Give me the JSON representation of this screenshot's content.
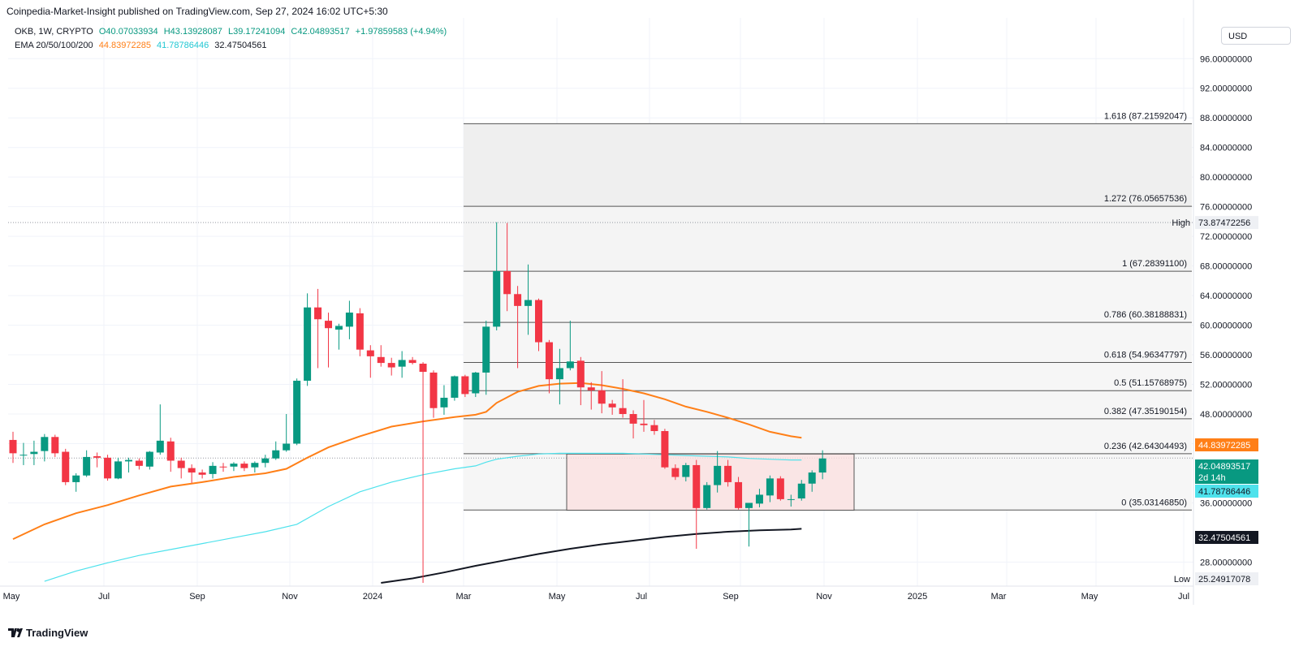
{
  "header": {
    "publisher": "Coinpedia-Market-Insight published on TradingView.com, Sep 27, 2024 16:02 UTC+5:30"
  },
  "legend": {
    "symbol": "OKB, 1W, CRYPTO",
    "open": "O40.07033934",
    "high": "H43.13928087",
    "low": "L39.17241094",
    "close": "C42.04893517",
    "change": "+1.97859583 (+4.94%)",
    "ema_label": "EMA 20/50/100/200",
    "ema20": "44.83972285",
    "ema50": "41.78786446",
    "ema100": "32.47504561"
  },
  "currency_button": "USD",
  "brand": "TradingView",
  "colors": {
    "up": "#089981",
    "down": "#f23645",
    "ema20": "#ff7f17",
    "ema50": "#4ee2ec",
    "ema100": "#131722",
    "box_fill": "#fbe1e1",
    "box_stroke": "#555555"
  },
  "chart_data": {
    "type": "candlestick",
    "price_axis": {
      "ylim": [
        25,
        99
      ],
      "ticks": [
        "96.00000000",
        "92.00000000",
        "88.00000000",
        "84.00000000",
        "80.00000000",
        "76.00000000",
        "72.00000000",
        "68.00000000",
        "64.00000000",
        "60.00000000",
        "56.00000000",
        "52.00000000",
        "48.00000000",
        "44.00000000",
        "36.00000000",
        "28.00000000"
      ]
    },
    "time_axis": {
      "labels": [
        "May",
        "Jul",
        "Sep",
        "Nov",
        "2024",
        "Mar",
        "May",
        "Jul",
        "Sep",
        "Nov",
        "2025",
        "Mar",
        "May",
        "Jul"
      ]
    },
    "price_tags": {
      "high_label": "High",
      "high_value": "73.87472256",
      "low_label": "Low",
      "low_value": "25.24917078",
      "close_value": "42.04893517",
      "countdown": "2d 14h",
      "ema20_value": "44.83972285",
      "ema50_value": "41.78786446",
      "ema100_value": "32.47504561"
    },
    "fib_levels": [
      {
        "level": "1.618",
        "price": 87.21592047,
        "label": "1.618 (87.21592047)"
      },
      {
        "level": "1.272",
        "price": 76.05657536,
        "label": "1.272 (76.05657536)"
      },
      {
        "level": "1",
        "price": 67.283911,
        "label": "1 (67.28391100)"
      },
      {
        "level": "0.786",
        "price": 60.38188831,
        "label": "0.786 (60.38188831)"
      },
      {
        "level": "0.618",
        "price": 54.96347797,
        "label": "0.618 (54.96347797)"
      },
      {
        "level": "0.5",
        "price": 51.15768975,
        "label": "0.5 (51.15768975)"
      },
      {
        "level": "0.382",
        "price": 47.35190154,
        "label": "0.382 (47.35190154)"
      },
      {
        "level": "0.236",
        "price": 42.64304493,
        "label": "0.236 (42.64304493)"
      },
      {
        "level": "0",
        "price": 35.0314685,
        "label": "0 (35.03146850)"
      }
    ],
    "consolidation_box": {
      "top": 42.6,
      "bottom": 35.0
    },
    "candles": [
      {
        "o": 44.5,
        "h": 45.6,
        "l": 41.4,
        "c": 42.7
      },
      {
        "o": 42.4,
        "h": 44.1,
        "l": 41.1,
        "c": 42.5
      },
      {
        "o": 42.6,
        "h": 44.4,
        "l": 41.1,
        "c": 42.9
      },
      {
        "o": 43.0,
        "h": 45.3,
        "l": 41.6,
        "c": 44.9
      },
      {
        "o": 44.9,
        "h": 45.2,
        "l": 42.2,
        "c": 42.7
      },
      {
        "o": 42.9,
        "h": 43.3,
        "l": 38.4,
        "c": 38.8
      },
      {
        "o": 38.8,
        "h": 40.0,
        "l": 37.5,
        "c": 39.7
      },
      {
        "o": 39.7,
        "h": 43.1,
        "l": 39.5,
        "c": 42.2
      },
      {
        "o": 42.3,
        "h": 42.8,
        "l": 40.8,
        "c": 42.1
      },
      {
        "o": 42.1,
        "h": 42.5,
        "l": 39.0,
        "c": 39.3
      },
      {
        "o": 39.3,
        "h": 42.1,
        "l": 39.2,
        "c": 41.6
      },
      {
        "o": 41.6,
        "h": 42.1,
        "l": 40.1,
        "c": 41.8
      },
      {
        "o": 41.7,
        "h": 42.0,
        "l": 40.5,
        "c": 41.0
      },
      {
        "o": 40.9,
        "h": 43.0,
        "l": 40.5,
        "c": 42.9
      },
      {
        "o": 42.8,
        "h": 49.3,
        "l": 42.5,
        "c": 44.4
      },
      {
        "o": 44.3,
        "h": 44.8,
        "l": 40.2,
        "c": 41.7
      },
      {
        "o": 41.7,
        "h": 42.1,
        "l": 39.3,
        "c": 40.7
      },
      {
        "o": 40.7,
        "h": 41.2,
        "l": 38.7,
        "c": 40.1
      },
      {
        "o": 40.1,
        "h": 40.5,
        "l": 39.3,
        "c": 39.8
      },
      {
        "o": 39.9,
        "h": 41.5,
        "l": 39.3,
        "c": 41.0
      },
      {
        "o": 40.9,
        "h": 41.4,
        "l": 40.2,
        "c": 40.8
      },
      {
        "o": 40.9,
        "h": 41.5,
        "l": 40.3,
        "c": 41.3
      },
      {
        "o": 41.3,
        "h": 41.6,
        "l": 40.3,
        "c": 40.7
      },
      {
        "o": 40.8,
        "h": 41.6,
        "l": 40.1,
        "c": 41.4
      },
      {
        "o": 41.4,
        "h": 42.5,
        "l": 40.8,
        "c": 42.0
      },
      {
        "o": 42.0,
        "h": 44.3,
        "l": 41.8,
        "c": 43.1
      },
      {
        "o": 43.1,
        "h": 48.0,
        "l": 42.9,
        "c": 44.0
      },
      {
        "o": 44.0,
        "h": 52.8,
        "l": 43.8,
        "c": 52.5
      },
      {
        "o": 52.5,
        "h": 64.3,
        "l": 51.8,
        "c": 62.4
      },
      {
        "o": 62.4,
        "h": 64.9,
        "l": 54.2,
        "c": 60.8
      },
      {
        "o": 60.6,
        "h": 61.7,
        "l": 54.3,
        "c": 59.6
      },
      {
        "o": 59.4,
        "h": 60.2,
        "l": 56.7,
        "c": 59.9
      },
      {
        "o": 59.8,
        "h": 63.3,
        "l": 58.1,
        "c": 61.7
      },
      {
        "o": 61.6,
        "h": 62.3,
        "l": 55.8,
        "c": 56.7
      },
      {
        "o": 56.6,
        "h": 57.3,
        "l": 52.9,
        "c": 55.8
      },
      {
        "o": 55.7,
        "h": 57.3,
        "l": 54.4,
        "c": 54.9
      },
      {
        "o": 54.9,
        "h": 55.6,
        "l": 53.2,
        "c": 54.3
      },
      {
        "o": 54.4,
        "h": 56.5,
        "l": 52.9,
        "c": 55.3
      },
      {
        "o": 55.3,
        "h": 55.7,
        "l": 54.7,
        "c": 54.9
      },
      {
        "o": 54.8,
        "h": 55.0,
        "l": 25.2,
        "c": 53.7
      },
      {
        "o": 53.6,
        "h": 53.9,
        "l": 47.5,
        "c": 48.8
      },
      {
        "o": 48.9,
        "h": 51.9,
        "l": 47.9,
        "c": 50.2
      },
      {
        "o": 50.2,
        "h": 53.2,
        "l": 49.8,
        "c": 53.1
      },
      {
        "o": 53.1,
        "h": 53.3,
        "l": 50.3,
        "c": 50.7
      },
      {
        "o": 50.8,
        "h": 53.7,
        "l": 50.3,
        "c": 53.6
      },
      {
        "o": 53.6,
        "h": 60.6,
        "l": 50.6,
        "c": 59.8
      },
      {
        "o": 59.8,
        "h": 73.9,
        "l": 59.3,
        "c": 67.3
      },
      {
        "o": 67.3,
        "h": 73.8,
        "l": 61.9,
        "c": 64.2
      },
      {
        "o": 64.2,
        "h": 65.3,
        "l": 54.2,
        "c": 62.6
      },
      {
        "o": 62.6,
        "h": 68.2,
        "l": 58.7,
        "c": 63.4
      },
      {
        "o": 63.4,
        "h": 63.6,
        "l": 56.5,
        "c": 57.7
      },
      {
        "o": 57.7,
        "h": 58.0,
        "l": 50.8,
        "c": 52.7
      },
      {
        "o": 52.7,
        "h": 56.8,
        "l": 49.3,
        "c": 54.2
      },
      {
        "o": 54.2,
        "h": 60.6,
        "l": 53.9,
        "c": 55.1
      },
      {
        "o": 55.2,
        "h": 55.7,
        "l": 49.2,
        "c": 51.6
      },
      {
        "o": 51.6,
        "h": 52.3,
        "l": 48.6,
        "c": 51.2
      },
      {
        "o": 51.2,
        "h": 53.8,
        "l": 48.1,
        "c": 49.4
      },
      {
        "o": 49.4,
        "h": 49.9,
        "l": 47.9,
        "c": 48.9
      },
      {
        "o": 48.8,
        "h": 52.7,
        "l": 47.5,
        "c": 48.0
      },
      {
        "o": 48.0,
        "h": 48.5,
        "l": 44.7,
        "c": 46.7
      },
      {
        "o": 46.7,
        "h": 49.9,
        "l": 45.6,
        "c": 46.5
      },
      {
        "o": 46.5,
        "h": 47.2,
        "l": 45.2,
        "c": 45.7
      },
      {
        "o": 45.7,
        "h": 46.0,
        "l": 40.6,
        "c": 40.8
      },
      {
        "o": 40.7,
        "h": 41.2,
        "l": 39.1,
        "c": 39.5
      },
      {
        "o": 39.5,
        "h": 41.4,
        "l": 38.9,
        "c": 41.1
      },
      {
        "o": 41.1,
        "h": 41.8,
        "l": 29.8,
        "c": 35.3
      },
      {
        "o": 35.3,
        "h": 38.8,
        "l": 35.1,
        "c": 38.4
      },
      {
        "o": 38.4,
        "h": 43.0,
        "l": 37.4,
        "c": 41.0
      },
      {
        "o": 41.0,
        "h": 41.8,
        "l": 38.2,
        "c": 38.8
      },
      {
        "o": 38.8,
        "h": 39.5,
        "l": 35.1,
        "c": 35.3
      },
      {
        "o": 35.3,
        "h": 36.0,
        "l": 30.1,
        "c": 36.0
      },
      {
        "o": 35.9,
        "h": 37.9,
        "l": 35.4,
        "c": 37.1
      },
      {
        "o": 37.0,
        "h": 39.7,
        "l": 36.1,
        "c": 39.3
      },
      {
        "o": 39.3,
        "h": 39.6,
        "l": 36.3,
        "c": 36.5
      },
      {
        "o": 36.4,
        "h": 37.1,
        "l": 35.5,
        "c": 36.5
      },
      {
        "o": 36.6,
        "h": 39.1,
        "l": 36.3,
        "c": 38.6
      },
      {
        "o": 38.6,
        "h": 40.4,
        "l": 37.5,
        "c": 40.1
      },
      {
        "o": 40.1,
        "h": 43.1,
        "l": 39.2,
        "c": 42.0
      }
    ],
    "ema_series": [
      {
        "name": "EMA 20",
        "color": "#ff7f17",
        "points": [
          [
            0,
            31.1
          ],
          [
            3,
            33.1
          ],
          [
            6,
            34.6
          ],
          [
            9,
            35.7
          ],
          [
            12,
            37.0
          ],
          [
            15,
            38.2
          ],
          [
            18,
            38.8
          ],
          [
            21,
            39.5
          ],
          [
            24,
            40.0
          ],
          [
            26,
            40.6
          ],
          [
            28,
            42.1
          ],
          [
            30,
            43.5
          ],
          [
            33,
            45.0
          ],
          [
            36,
            46.3
          ],
          [
            39,
            47.0
          ],
          [
            42,
            47.6
          ],
          [
            44,
            47.9
          ],
          [
            45,
            48.3
          ],
          [
            46,
            49.5
          ],
          [
            48,
            51.0
          ],
          [
            50,
            51.8
          ],
          [
            52,
            52.1
          ],
          [
            54,
            52.2
          ],
          [
            56,
            51.9
          ],
          [
            58,
            51.4
          ],
          [
            60,
            50.8
          ],
          [
            62,
            50.0
          ],
          [
            64,
            49.0
          ],
          [
            66,
            48.3
          ],
          [
            68,
            47.5
          ],
          [
            70,
            46.6
          ],
          [
            72,
            45.6
          ],
          [
            74,
            45.0
          ],
          [
            75,
            44.8
          ]
        ]
      },
      {
        "name": "EMA 50",
        "color": "#4ee2ec",
        "points": [
          [
            3,
            25.4
          ],
          [
            6,
            26.8
          ],
          [
            9,
            27.9
          ],
          [
            12,
            28.9
          ],
          [
            15,
            29.7
          ],
          [
            18,
            30.5
          ],
          [
            21,
            31.3
          ],
          [
            24,
            32.1
          ],
          [
            27,
            33.1
          ],
          [
            30,
            35.5
          ],
          [
            33,
            37.5
          ],
          [
            36,
            38.8
          ],
          [
            39,
            39.8
          ],
          [
            42,
            40.6
          ],
          [
            44,
            41.0
          ],
          [
            45,
            41.5
          ],
          [
            46,
            41.9
          ],
          [
            48,
            42.3
          ],
          [
            50,
            42.6
          ],
          [
            52,
            42.7
          ],
          [
            54,
            42.7
          ],
          [
            56,
            42.7
          ],
          [
            58,
            42.7
          ],
          [
            60,
            42.6
          ],
          [
            62,
            42.5
          ],
          [
            64,
            42.4
          ],
          [
            66,
            42.3
          ],
          [
            68,
            42.2
          ],
          [
            70,
            42.0
          ],
          [
            72,
            41.9
          ],
          [
            74,
            41.8
          ],
          [
            75,
            41.8
          ]
        ]
      },
      {
        "name": "EMA 100",
        "color": "#131722",
        "points": [
          [
            35,
            25.2
          ],
          [
            38,
            25.8
          ],
          [
            41,
            26.6
          ],
          [
            44,
            27.5
          ],
          [
            47,
            28.3
          ],
          [
            50,
            29.1
          ],
          [
            53,
            29.8
          ],
          [
            56,
            30.4
          ],
          [
            59,
            30.9
          ],
          [
            62,
            31.4
          ],
          [
            65,
            31.8
          ],
          [
            68,
            32.1
          ],
          [
            71,
            32.3
          ],
          [
            74,
            32.4
          ],
          [
            75,
            32.5
          ]
        ]
      }
    ]
  }
}
